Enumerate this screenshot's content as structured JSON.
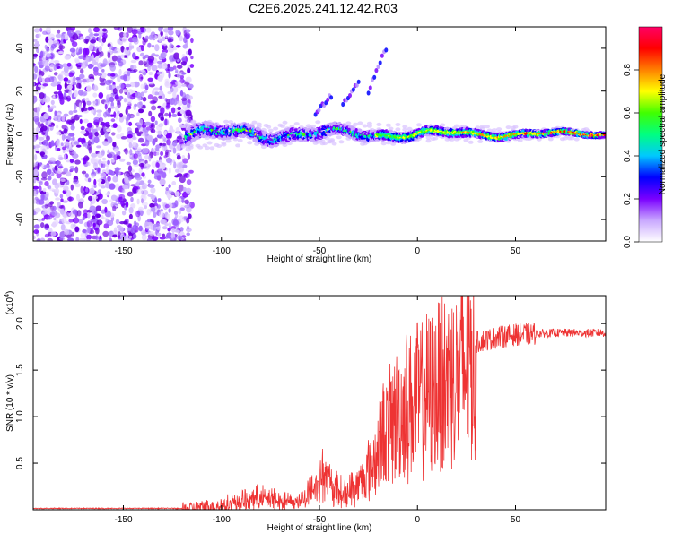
{
  "title": "C2E6.2025.241.12.42.R03",
  "chart_data": [
    {
      "type": "heatmap",
      "name": "spectrogram",
      "xlabel": "Height of straight line (km)",
      "ylabel": "Frequency (Hz)",
      "xlim": [
        -196,
        96
      ],
      "ylim": [
        -50,
        50
      ],
      "xticks": [
        -150,
        -100,
        -50,
        0,
        50
      ],
      "xtick_labels": [
        "-150",
        "-100",
        "-50",
        "0",
        "50"
      ],
      "yticks": [
        40,
        20,
        0,
        -20,
        -40
      ],
      "ytick_labels": [
        "40",
        "20",
        "0",
        "-20",
        "-40"
      ],
      "noise_region_x": [
        -196,
        -115
      ],
      "signal_band_x": [
        -118,
        96
      ],
      "signal_band_center_hz": 0,
      "harmonic_streaks": [
        {
          "x0": -25,
          "y0": 20,
          "x1": -16,
          "y1": 40
        },
        {
          "x0": -38,
          "y0": 14,
          "x1": -30,
          "y1": 24
        },
        {
          "x0": -52,
          "y0": 10,
          "x1": -44,
          "y1": 18
        }
      ],
      "colorbar": {
        "label": "Normalized spectral amplitude",
        "range": [
          0.0,
          1.0
        ],
        "ticks": [
          0.0,
          0.2,
          0.4,
          0.6,
          0.8
        ],
        "tick_labels": [
          "0.0",
          "0.2",
          "0.4",
          "0.6",
          "0.8"
        ],
        "colors": [
          "#ffffff",
          "#c9a8ff",
          "#7a00ff",
          "#0000ff",
          "#00c8ff",
          "#00ff80",
          "#40ff00",
          "#ffff00",
          "#ff8000",
          "#ff0000",
          "#ff0066"
        ]
      }
    },
    {
      "type": "line",
      "name": "snr",
      "xlabel": "Height of straight line (km)",
      "ylabel": "SNR (10 * v/v)",
      "multiplier_base": "(x10",
      "multiplier_exp": "4",
      "multiplier_close": ")",
      "xlim": [
        -196,
        96
      ],
      "ylim": [
        0,
        2.3
      ],
      "xticks": [
        -150,
        -100,
        -50,
        0,
        50
      ],
      "xtick_labels": [
        "-150",
        "-100",
        "-50",
        "0",
        "50"
      ],
      "yticks": [
        0.5,
        1.0,
        1.5,
        2.0
      ],
      "ytick_labels": [
        "0.5",
        "1.0",
        "1.5",
        "2.0"
      ],
      "color": "#ee3333",
      "envelope_x": [
        -196,
        -120,
        -100,
        -90,
        -80,
        -70,
        -60,
        -52,
        -48,
        -44,
        -38,
        -30,
        -22,
        -18,
        -12,
        -5,
        5,
        15,
        20,
        25,
        30,
        40,
        50,
        70,
        96
      ],
      "envelope_y": [
        0.0,
        0.0,
        0.05,
        0.1,
        0.15,
        0.1,
        0.1,
        0.3,
        0.45,
        0.3,
        0.2,
        0.3,
        0.6,
        0.9,
        1.1,
        1.3,
        1.4,
        1.6,
        1.65,
        1.75,
        1.8,
        1.85,
        1.88,
        1.9,
        1.9
      ],
      "noise_amplitude": 0.15
    }
  ]
}
